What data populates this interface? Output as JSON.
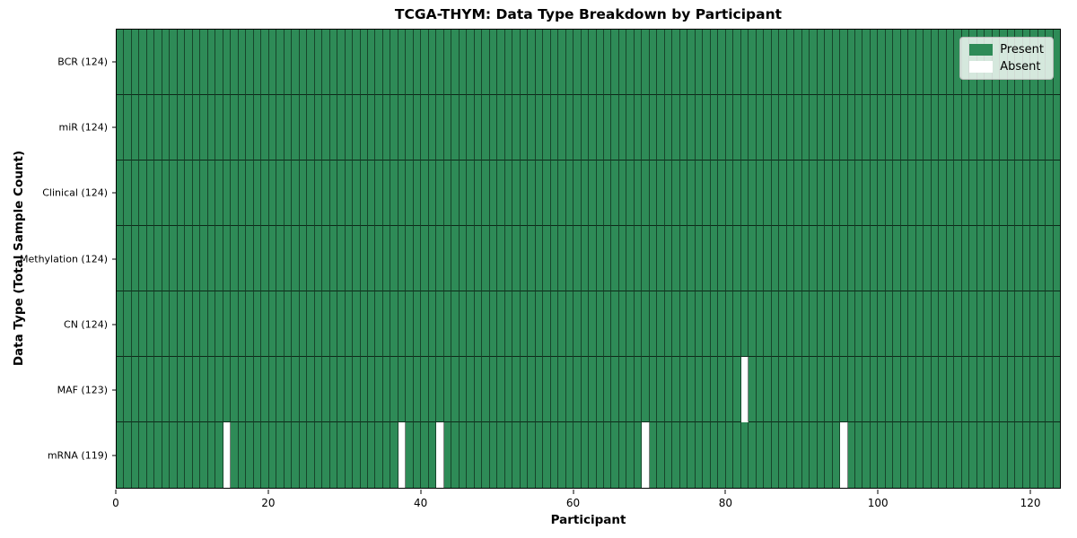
{
  "title": "TCGA-THYM: Data Type Breakdown by Participant",
  "colors": {
    "present": "#2e8b57",
    "absent": "#ffffff",
    "edge_vertical": "rgba(0,0,0,0.5)",
    "edge_horizontal": "rgba(0,0,0,0.7)",
    "spine": "#000000",
    "legend_background": "rgba(255,255,255,0.8)"
  },
  "legend": {
    "entries": [
      {
        "label": "Present",
        "type": "present"
      },
      {
        "label": "Absent",
        "type": "absent"
      }
    ]
  },
  "chart_data": {
    "type": "heatmap",
    "title": "TCGA-THYM: Data Type Breakdown by Participant",
    "xlabel": "Participant",
    "ylabel": "Data Type (Total Sample Count)",
    "n_participants": 124,
    "x_range": [
      0,
      124
    ],
    "x_ticks": [
      0,
      20,
      40,
      60,
      80,
      100,
      120
    ],
    "grid": "cell-borders",
    "legend_position": "upper-right",
    "legend_entries": [
      "Present",
      "Absent"
    ],
    "rows": [
      {
        "label": "BCR (124)",
        "data_type": "BCR",
        "present_count": 124,
        "absent_indices": []
      },
      {
        "label": "miR (124)",
        "data_type": "miR",
        "present_count": 124,
        "absent_indices": []
      },
      {
        "label": "Clinical (124)",
        "data_type": "Clinical",
        "present_count": 124,
        "absent_indices": []
      },
      {
        "label": "Methylation (124)",
        "data_type": "Methylation",
        "present_count": 124,
        "absent_indices": []
      },
      {
        "label": "CN (124)",
        "data_type": "CN",
        "present_count": 124,
        "absent_indices": []
      },
      {
        "label": "MAF (123)",
        "data_type": "MAF",
        "present_count": 123,
        "absent_indices": [
          82
        ]
      },
      {
        "label": "mRNA (119)",
        "data_type": "mRNA",
        "present_count": 119,
        "absent_indices": [
          14,
          37,
          42,
          69,
          95
        ]
      }
    ]
  }
}
